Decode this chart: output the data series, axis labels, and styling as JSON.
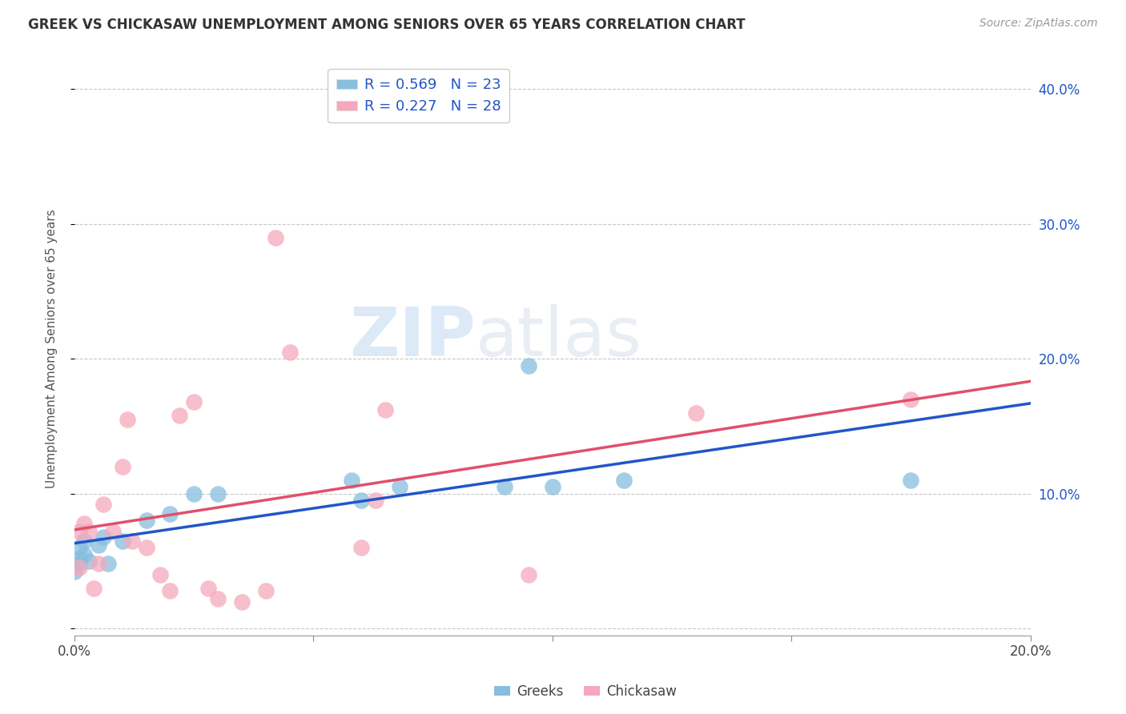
{
  "title": "GREEK VS CHICKASAW UNEMPLOYMENT AMONG SENIORS OVER 65 YEARS CORRELATION CHART",
  "source": "Source: ZipAtlas.com",
  "ylabel": "Unemployment Among Seniors over 65 years",
  "xlim": [
    0.0,
    0.2
  ],
  "ylim": [
    -0.005,
    0.42
  ],
  "xticks": [
    0.0,
    0.05,
    0.1,
    0.15,
    0.2
  ],
  "yticks": [
    0.0,
    0.1,
    0.2,
    0.3,
    0.4
  ],
  "xticklabels": [
    "0.0%",
    "",
    "",
    "",
    "20.0%"
  ],
  "yticklabels": [
    "",
    "",
    "",
    "",
    ""
  ],
  "right_yticklabels": [
    "",
    "10.0%",
    "20.0%",
    "30.0%",
    "40.0%"
  ],
  "greek_color": "#87BEDE",
  "chickasaw_color": "#F5A8BC",
  "greek_line_color": "#2256C8",
  "chickasaw_line_color": "#E0506A",
  "R_greek": 0.569,
  "N_greek": 23,
  "R_chickasaw": 0.227,
  "N_chickasaw": 28,
  "watermark_zip": "ZIP",
  "watermark_atlas": "atlas",
  "greeks_x": [
    0.0,
    0.001,
    0.001,
    0.001,
    0.002,
    0.002,
    0.003,
    0.005,
    0.006,
    0.007,
    0.01,
    0.015,
    0.02,
    0.025,
    0.03,
    0.058,
    0.06,
    0.068,
    0.09,
    0.095,
    0.1,
    0.115,
    0.175
  ],
  "greeks_y": [
    0.042,
    0.048,
    0.052,
    0.06,
    0.055,
    0.065,
    0.05,
    0.062,
    0.068,
    0.048,
    0.065,
    0.08,
    0.085,
    0.1,
    0.1,
    0.11,
    0.095,
    0.105,
    0.105,
    0.195,
    0.105,
    0.11,
    0.11
  ],
  "chickasaw_x": [
    0.001,
    0.001,
    0.002,
    0.003,
    0.004,
    0.005,
    0.006,
    0.008,
    0.01,
    0.011,
    0.012,
    0.015,
    0.018,
    0.02,
    0.022,
    0.025,
    0.028,
    0.03,
    0.035,
    0.04,
    0.042,
    0.045,
    0.06,
    0.063,
    0.065,
    0.095,
    0.13,
    0.175
  ],
  "chickasaw_y": [
    0.045,
    0.072,
    0.078,
    0.072,
    0.03,
    0.048,
    0.092,
    0.072,
    0.12,
    0.155,
    0.065,
    0.06,
    0.04,
    0.028,
    0.158,
    0.168,
    0.03,
    0.022,
    0.02,
    0.028,
    0.29,
    0.205,
    0.06,
    0.095,
    0.162,
    0.04,
    0.16,
    0.17
  ],
  "background_color": "#ffffff",
  "grid_color": "#c8c8c8"
}
